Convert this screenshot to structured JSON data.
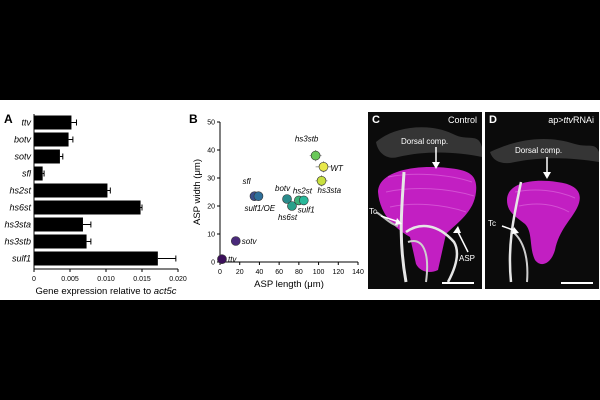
{
  "panels": {
    "a": "A",
    "b": "B",
    "c": "C",
    "d": "D"
  },
  "chart_data": [
    {
      "type": "bar",
      "orientation": "horizontal",
      "categories": [
        "ttv",
        "botv",
        "sotv",
        "sfl",
        "hs2st",
        "hs6st",
        "hs3sta",
        "hs3stb",
        "sulf1"
      ],
      "values": [
        0.0052,
        0.0048,
        0.0036,
        0.0012,
        0.0102,
        0.0148,
        0.0068,
        0.0073,
        0.0172
      ],
      "errors": [
        0.0007,
        0.0006,
        0.0004,
        0.0002,
        0.0004,
        0.0002,
        0.0011,
        0.0006,
        0.0025
      ],
      "xlabel_prefix": "Gene expression relative to ",
      "xlabel_gene": "act5c",
      "xlim": [
        0,
        0.02
      ],
      "xticks": [
        "0",
        "0.005",
        "0.010",
        "0.015",
        "0.020"
      ],
      "bar_color": "#000000"
    },
    {
      "type": "scatter",
      "xlabel": "ASP length (μm)",
      "ylabel": "ASP width (μm)",
      "xlim": [
        0,
        140
      ],
      "ylim": [
        0,
        50
      ],
      "xticks": [
        "0",
        "20",
        "40",
        "60",
        "80",
        "100",
        "120",
        "140"
      ],
      "yticks": [
        "0",
        "10",
        "20",
        "30",
        "40",
        "50"
      ],
      "points": [
        {
          "label": "ttv",
          "x": 2,
          "y": 1,
          "color": "#3b0f5a"
        },
        {
          "label": "sotv",
          "x": 16,
          "y": 7.5,
          "color": "#4a2a7a"
        },
        {
          "label": "sfl",
          "x": 35,
          "y": 23.5,
          "color": "#3c4f8c"
        },
        {
          "label": "sulf1/OE",
          "x": 39,
          "y": 23.5,
          "color": "#2f6f9a"
        },
        {
          "label": "botv",
          "x": 68,
          "y": 22.5,
          "color": "#2a8a8a"
        },
        {
          "label": "hs6st",
          "x": 73,
          "y": 20,
          "color": "#2aa08a"
        },
        {
          "label": "hs2st",
          "x": 80,
          "y": 22,
          "color": "#3cb27a"
        },
        {
          "label": "hs3stb",
          "x": 97,
          "y": 38,
          "color": "#6ac85a"
        },
        {
          "label": "WT",
          "x": 105,
          "y": 34,
          "color": "#e8e84a"
        },
        {
          "label": "hs3sta",
          "x": 103,
          "y": 29,
          "color": "#c8e040"
        },
        {
          "label": "sulf1",
          "x": 85,
          "y": 22,
          "color": "#28b89a"
        }
      ],
      "errors_x": [
        1,
        2,
        3,
        3,
        4,
        5,
        5,
        6,
        8,
        6,
        4
      ],
      "errors_y": [
        0.5,
        0.8,
        1.5,
        1.5,
        1.5,
        1.5,
        1.5,
        2,
        2,
        2,
        1.5
      ]
    }
  ],
  "micrographs": {
    "c": {
      "title": "Control",
      "labels": {
        "dorsal": "Dorsal comp.",
        "tc": "Tc",
        "asp": "ASP"
      }
    },
    "d": {
      "title_prefix": "ap>",
      "title_gene": "ttv",
      "title_suffix": "RNAi",
      "labels": {
        "dorsal": "Dorsal comp.",
        "tc": "Tc"
      }
    }
  },
  "colors": {
    "magenta": "#c21fc2",
    "trachea": "#e6e6e6",
    "background": "#0b0b0b"
  }
}
